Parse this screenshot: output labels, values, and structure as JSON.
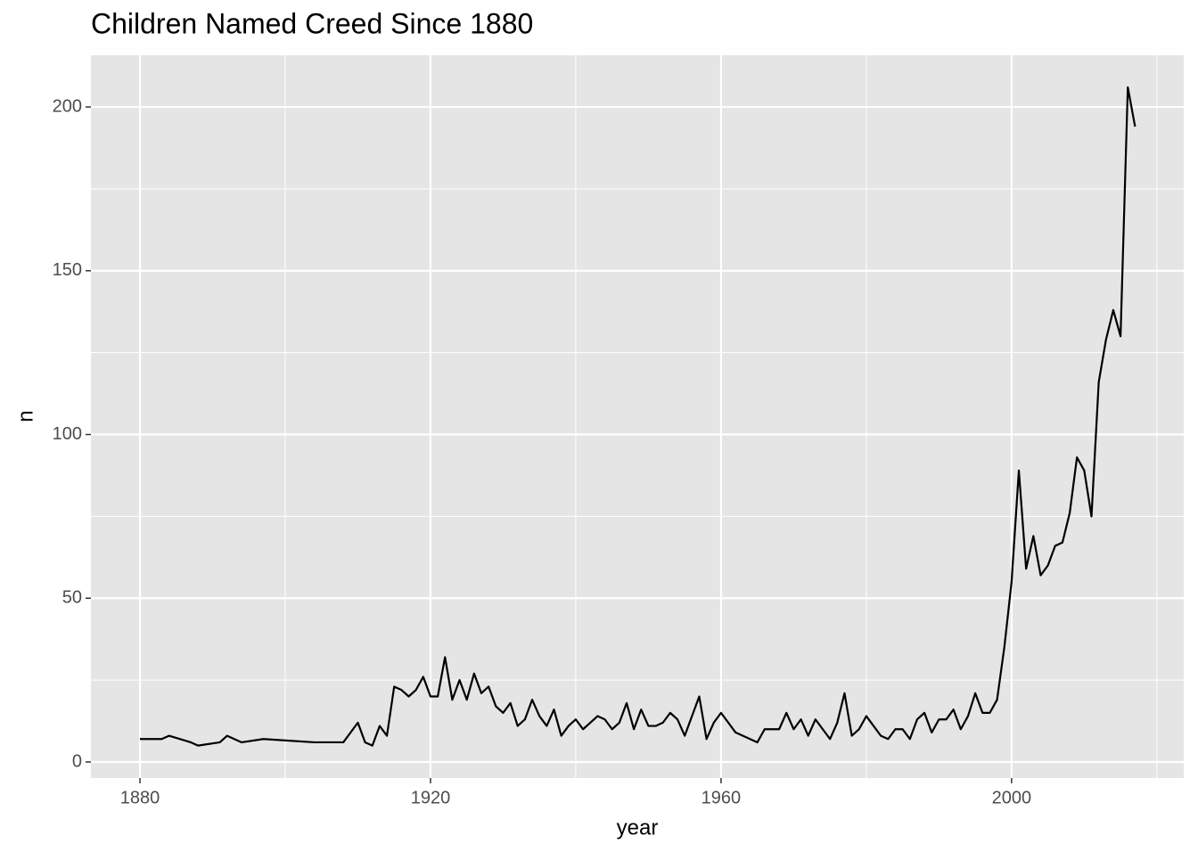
{
  "chart_data": {
    "type": "line",
    "title": "Children Named Creed Since 1880",
    "x_label": "year",
    "y_label": "n",
    "x": [
      1880,
      1883,
      1884,
      1887,
      1888,
      1891,
      1892,
      1894,
      1897,
      1904,
      1908,
      1910,
      1911,
      1912,
      1913,
      1914,
      1915,
      1916,
      1917,
      1918,
      1919,
      1920,
      1921,
      1922,
      1923,
      1924,
      1925,
      1926,
      1927,
      1928,
      1929,
      1930,
      1931,
      1932,
      1933,
      1934,
      1935,
      1936,
      1937,
      1938,
      1939,
      1940,
      1941,
      1942,
      1943,
      1944,
      1945,
      1946,
      1947,
      1948,
      1949,
      1950,
      1951,
      1952,
      1953,
      1954,
      1955,
      1956,
      1957,
      1958,
      1959,
      1960,
      1961,
      1962,
      1965,
      1966,
      1967,
      1968,
      1969,
      1970,
      1971,
      1972,
      1973,
      1974,
      1975,
      1976,
      1977,
      1978,
      1979,
      1980,
      1981,
      1982,
      1983,
      1984,
      1985,
      1986,
      1987,
      1988,
      1989,
      1990,
      1991,
      1992,
      1993,
      1994,
      1995,
      1996,
      1997,
      1998,
      1999,
      2000,
      2001,
      2002,
      2003,
      2004,
      2005,
      2006,
      2007,
      2008,
      2009,
      2010,
      2011,
      2012,
      2013,
      2014,
      2015,
      2016,
      2017
    ],
    "series": [
      {
        "color": "#000000",
        "values": [
          7,
          7,
          8,
          6,
          5,
          6,
          8,
          6,
          7,
          6,
          6,
          12,
          6,
          5,
          11,
          8,
          23,
          22,
          20,
          22,
          26,
          20,
          20,
          32,
          19,
          25,
          19,
          27,
          21,
          23,
          17,
          15,
          18,
          11,
          13,
          19,
          14,
          11,
          16,
          8,
          11,
          13,
          10,
          12,
          14,
          13,
          10,
          12,
          18,
          10,
          16,
          11,
          11,
          12,
          15,
          13,
          8,
          14,
          20,
          7,
          12,
          15,
          12,
          9,
          6,
          10,
          10,
          10,
          15,
          10,
          13,
          8,
          13,
          10,
          7,
          12,
          21,
          8,
          10,
          14,
          11,
          8,
          7,
          10,
          10,
          7,
          13,
          15,
          9,
          13,
          13,
          16,
          10,
          14,
          21,
          15,
          15,
          19,
          35,
          55,
          89,
          59,
          69,
          57,
          60,
          66,
          67,
          76,
          93,
          89,
          75,
          116,
          129,
          138,
          130,
          206,
          194
        ]
      }
    ],
    "xlim": [
      1873.25,
      2023.7
    ],
    "xticks": [
      1880,
      1920,
      1960,
      2000
    ],
    "ylim": [
      -4.9,
      215.8
    ],
    "yticks": [
      0,
      50,
      100,
      150,
      200
    ],
    "grid": true
  }
}
